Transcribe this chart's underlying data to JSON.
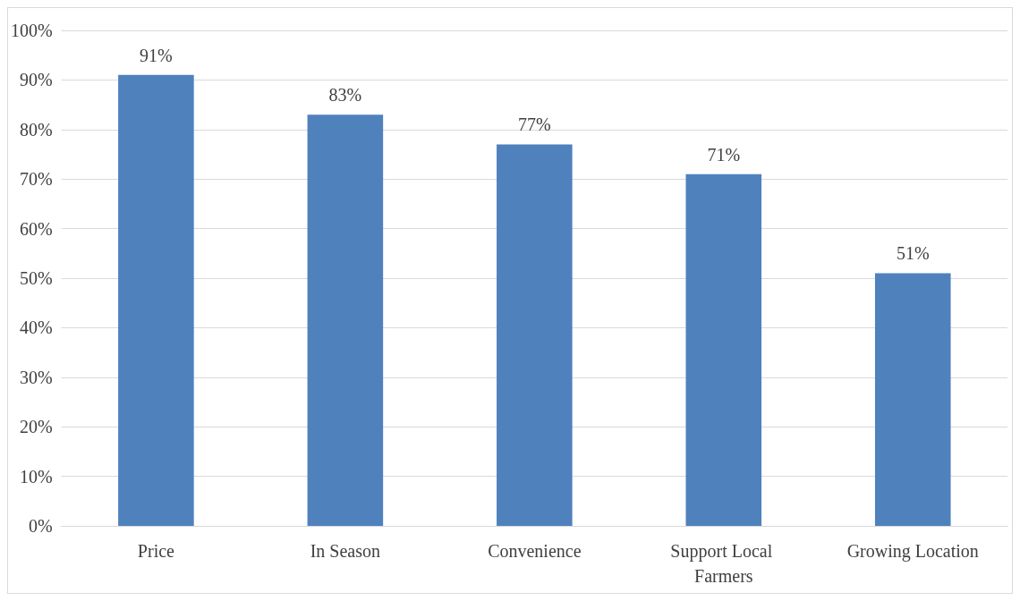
{
  "chart_data": {
    "type": "bar",
    "categories": [
      "Price",
      "In Season",
      "Convenience",
      "Support Local Farmers",
      "Growing Location"
    ],
    "values": [
      91,
      83,
      77,
      71,
      51
    ],
    "value_labels": [
      "91%",
      "83%",
      "77%",
      "71%",
      "51%"
    ],
    "color": "#4f81bd",
    "ylim": [
      0,
      100
    ],
    "yticks": [
      {
        "value": 0,
        "label": "0%"
      },
      {
        "value": 10,
        "label": "10%"
      },
      {
        "value": 20,
        "label": "20%"
      },
      {
        "value": 30,
        "label": "30%"
      },
      {
        "value": 40,
        "label": "40%"
      },
      {
        "value": 50,
        "label": "50%"
      },
      {
        "value": 60,
        "label": "60%"
      },
      {
        "value": 70,
        "label": "70%"
      },
      {
        "value": 80,
        "label": "80%"
      },
      {
        "value": 90,
        "label": "90%"
      },
      {
        "value": 100,
        "label": "100%"
      }
    ],
    "grid": true
  }
}
